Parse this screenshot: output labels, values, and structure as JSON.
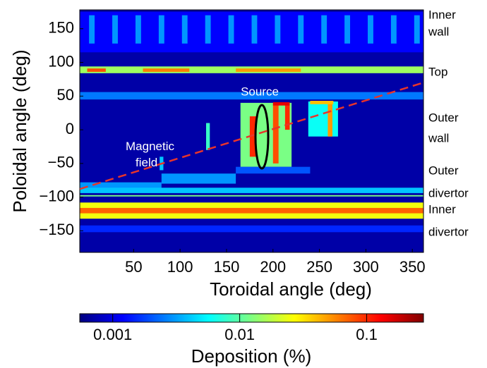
{
  "chart_data": {
    "type": "heatmap",
    "xlabel": "Toroidal angle (deg)",
    "ylabel": "Poloidal angle (deg)",
    "xlim": [
      -8,
      362
    ],
    "ylim": [
      -182,
      178
    ],
    "xticks": [
      50,
      100,
      150,
      200,
      250,
      300,
      350
    ],
    "yticks": [
      {
        "value": 150,
        "label": "150"
      },
      {
        "value": 100,
        "label": "100"
      },
      {
        "value": 50,
        "label": "50"
      },
      {
        "value": 0,
        "label": "0"
      },
      {
        "value": -50,
        "label": "−50"
      },
      {
        "value": -100,
        "label": "−100"
      },
      {
        "value": -150,
        "label": "−150"
      }
    ],
    "colorbar": {
      "label": "Deposition (%)",
      "scale": "log",
      "lim": [
        0.00055,
        0.28
      ],
      "ticks": [
        0.001,
        0.01,
        0.1
      ],
      "colormap": "jet"
    },
    "cells": [
      {
        "x": [
          -8,
          362
        ],
        "y": [
          -182,
          178
        ],
        "value": 0.0007
      },
      {
        "x": [
          -8,
          362
        ],
        "y": [
          115,
          175
        ],
        "value": 0.0012
      },
      {
        "x": [
          2,
          8
        ],
        "y": [
          128,
          170
        ],
        "value": 0.003
      },
      {
        "x": [
          27,
          33
        ],
        "y": [
          128,
          170
        ],
        "value": 0.003
      },
      {
        "x": [
          52,
          58
        ],
        "y": [
          128,
          170
        ],
        "value": 0.003
      },
      {
        "x": [
          77,
          83
        ],
        "y": [
          128,
          170
        ],
        "value": 0.003
      },
      {
        "x": [
          102,
          108
        ],
        "y": [
          128,
          170
        ],
        "value": 0.003
      },
      {
        "x": [
          127,
          133
        ],
        "y": [
          128,
          170
        ],
        "value": 0.003
      },
      {
        "x": [
          152,
          158
        ],
        "y": [
          128,
          170
        ],
        "value": 0.003
      },
      {
        "x": [
          177,
          183
        ],
        "y": [
          128,
          170
        ],
        "value": 0.003
      },
      {
        "x": [
          202,
          208
        ],
        "y": [
          128,
          170
        ],
        "value": 0.003
      },
      {
        "x": [
          227,
          233
        ],
        "y": [
          128,
          170
        ],
        "value": 0.003
      },
      {
        "x": [
          252,
          258
        ],
        "y": [
          128,
          170
        ],
        "value": 0.003
      },
      {
        "x": [
          277,
          283
        ],
        "y": [
          128,
          170
        ],
        "value": 0.003
      },
      {
        "x": [
          302,
          308
        ],
        "y": [
          128,
          170
        ],
        "value": 0.003
      },
      {
        "x": [
          327,
          333
        ],
        "y": [
          128,
          170
        ],
        "value": 0.003
      },
      {
        "x": [
          352,
          358
        ],
        "y": [
          128,
          170
        ],
        "value": 0.003
      },
      {
        "x": [
          -8,
          362
        ],
        "y": [
          84,
          94
        ],
        "value": 0.015
      },
      {
        "x": [
          0,
          20
        ],
        "y": [
          86,
          91
        ],
        "value": 0.08
      },
      {
        "x": [
          60,
          110
        ],
        "y": [
          86,
          91
        ],
        "value": 0.06
      },
      {
        "x": [
          160,
          230
        ],
        "y": [
          86,
          91
        ],
        "value": 0.05
      },
      {
        "x": [
          -8,
          362
        ],
        "y": [
          45,
          56
        ],
        "value": 0.0025
      },
      {
        "x": [
          165,
          220
        ],
        "y": [
          -55,
          40
        ],
        "value": 0.012
      },
      {
        "x": [
          175,
          182
        ],
        "y": [
          -40,
          20
        ],
        "value": 0.1
      },
      {
        "x": [
          200,
          206
        ],
        "y": [
          -50,
          38
        ],
        "value": 0.08
      },
      {
        "x": [
          213,
          218
        ],
        "y": [
          0,
          40
        ],
        "value": 0.1
      },
      {
        "x": [
          200,
          218
        ],
        "y": [
          36,
          41
        ],
        "value": 0.15
      },
      {
        "x": [
          238,
          270
        ],
        "y": [
          -10,
          42
        ],
        "value": 0.006
      },
      {
        "x": [
          259,
          264
        ],
        "y": [
          -10,
          40
        ],
        "value": 0.05
      },
      {
        "x": [
          240,
          265
        ],
        "y": [
          38,
          43
        ],
        "value": 0.04
      },
      {
        "x": [
          128,
          132
        ],
        "y": [
          -30,
          10
        ],
        "value": 0.008
      },
      {
        "x": [
          78,
          82
        ],
        "y": [
          -60,
          -40
        ],
        "value": 0.004
      },
      {
        "x": [
          -8,
          80
        ],
        "y": [
          -88,
          -78
        ],
        "value": 0.003
      },
      {
        "x": [
          80,
          160
        ],
        "y": [
          -80,
          -65
        ],
        "value": 0.003
      },
      {
        "x": [
          160,
          240
        ],
        "y": [
          -65,
          -55
        ],
        "value": 0.002
      },
      {
        "x": [
          -8,
          362
        ],
        "y": [
          -94,
          -86
        ],
        "value": 0.004
      },
      {
        "x": [
          -8,
          362
        ],
        "y": [
          -99,
          -97
        ],
        "value": 0.012
      },
      {
        "x": [
          -8,
          362
        ],
        "y": [
          -132,
          -108
        ],
        "value": 0.025
      },
      {
        "x": [
          -8,
          362
        ],
        "y": [
          -124,
          -116
        ],
        "value": 0.07
      },
      {
        "x": [
          -8,
          362
        ],
        "y": [
          -152,
          -142
        ],
        "value": 0.0015
      }
    ],
    "field_line": {
      "color": "#e8342a",
      "x": [
        -8,
        188,
        362
      ],
      "y": [
        -88,
        -4,
        70
      ]
    },
    "annotations": [
      "Source",
      "Magnetic field"
    ],
    "region_labels": [
      [
        "Inner",
        "wall"
      ],
      [
        "Top"
      ],
      [
        "Outer",
        "wall"
      ],
      [
        "Outer",
        "divertor"
      ],
      [
        "Inner",
        "divertor"
      ]
    ]
  }
}
